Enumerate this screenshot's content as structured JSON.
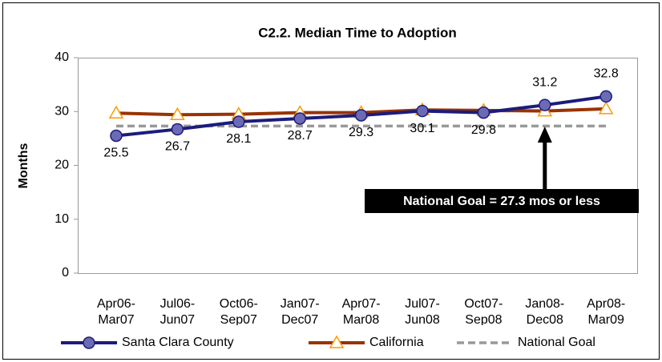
{
  "chart_data": {
    "type": "line",
    "title": "C2.2. Median Time to Adoption",
    "y_label": "Months",
    "categories": [
      "Apr06-Mar07",
      "Jul06-Jun07",
      "Oct06-Sep07",
      "Jan07-Dec07",
      "Apr07-Mar08",
      "Jul07-Jun08",
      "Oct07-Sep08",
      "Jan08-Dec08",
      "Apr08-Mar09"
    ],
    "series": [
      {
        "name": "Santa Clara County",
        "color": "#1c1c7c",
        "marker": "circle",
        "values": [
          25.5,
          26.7,
          28.1,
          28.7,
          29.3,
          30.1,
          29.8,
          31.2,
          32.8
        ],
        "data_labels": true
      },
      {
        "name": "California",
        "color": "#993300",
        "marker": "triangle",
        "values": [
          29.7,
          29.4,
          29.5,
          29.8,
          29.8,
          30.3,
          30.2,
          30.1,
          30.5
        ]
      },
      {
        "name": "National Goal",
        "color": "#999999",
        "dashed": true,
        "values": [
          27.3,
          27.3,
          27.3,
          27.3,
          27.3,
          27.3,
          27.3,
          27.3,
          27.3
        ]
      }
    ],
    "annotation": "National Goal = 27.3 mos or less",
    "ylim": [
      0,
      40
    ],
    "yticks": [
      0,
      10,
      20,
      30,
      40
    ],
    "grid": false,
    "legend": "bottom"
  }
}
